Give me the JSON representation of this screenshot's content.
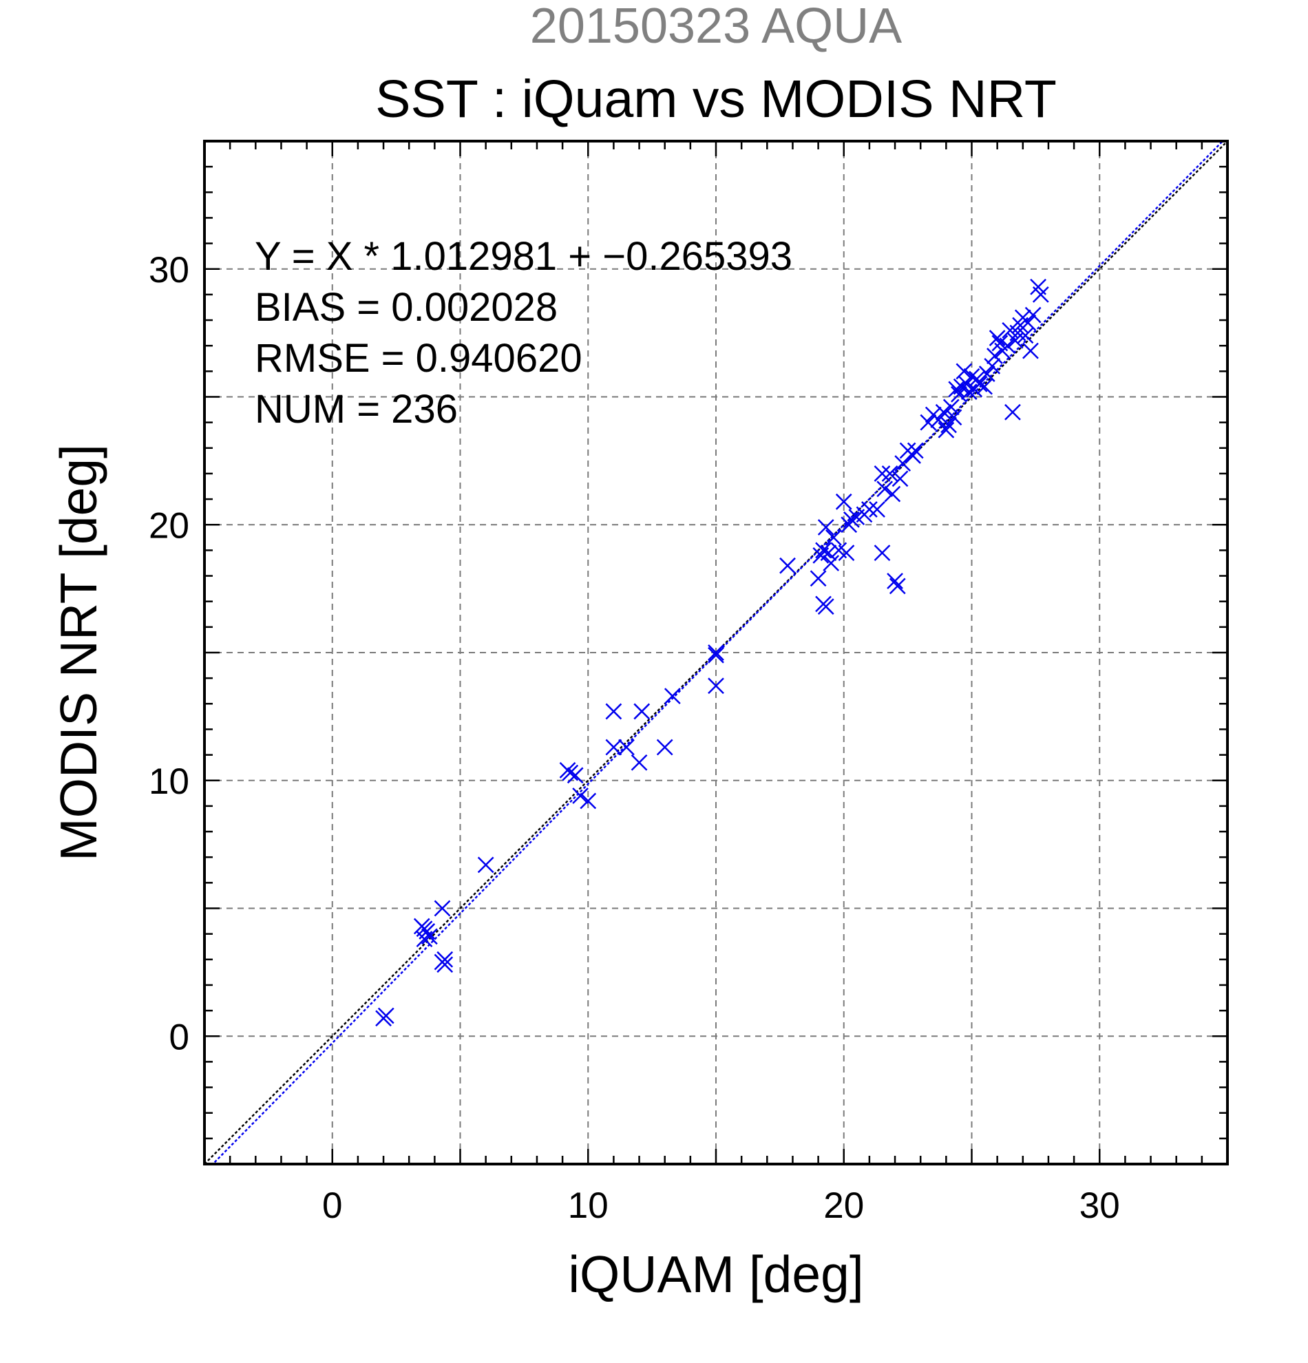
{
  "figure": {
    "suptitle": "20150323 AQUA",
    "title": "SST : iQuam vs MODIS NRT",
    "stats": [
      "Y = X * 1.012981 + −0.265393",
      "BIAS = 0.002028",
      "RMSE = 0.940620",
      "NUM = 236"
    ]
  },
  "chart_data": {
    "type": "scatter",
    "xlabel": "iQUAM [deg]",
    "ylabel": "MODIS NRT [deg]",
    "xlim": [
      -5,
      35
    ],
    "ylim": [
      -5,
      35
    ],
    "xticks": [
      0,
      10,
      20,
      30
    ],
    "yticks": [
      0,
      10,
      20,
      30
    ],
    "grid": true,
    "colors": {
      "points": "#0000ee",
      "regression": "#0000ee",
      "identity": "#000000"
    },
    "regression": {
      "slope": 1.012981,
      "intercept": -0.265393
    },
    "points": [
      [
        2.0,
        0.7
      ],
      [
        2.1,
        0.8
      ],
      [
        3.5,
        4.3
      ],
      [
        3.6,
        4.2
      ],
      [
        3.7,
        4.1
      ],
      [
        3.8,
        3.9
      ],
      [
        3.6,
        3.8
      ],
      [
        4.3,
        5.0
      ],
      [
        4.3,
        2.9
      ],
      [
        4.4,
        2.8
      ],
      [
        4.4,
        3.0
      ],
      [
        6.0,
        6.7
      ],
      [
        9.2,
        10.4
      ],
      [
        9.3,
        10.3
      ],
      [
        9.5,
        10.2
      ],
      [
        9.7,
        9.4
      ],
      [
        10.0,
        9.2
      ],
      [
        11.0,
        12.7
      ],
      [
        11.0,
        11.3
      ],
      [
        11.5,
        11.3
      ],
      [
        12.0,
        10.7
      ],
      [
        12.1,
        12.7
      ],
      [
        13.0,
        11.3
      ],
      [
        13.3,
        13.3
      ],
      [
        15.0,
        15.0
      ],
      [
        15.0,
        14.9
      ],
      [
        15.0,
        13.7
      ],
      [
        17.8,
        18.4
      ],
      [
        19.0,
        17.9
      ],
      [
        19.1,
        18.8
      ],
      [
        19.2,
        19.0
      ],
      [
        19.2,
        16.9
      ],
      [
        19.3,
        16.8
      ],
      [
        19.3,
        19.9
      ],
      [
        19.4,
        18.9
      ],
      [
        19.5,
        18.5
      ],
      [
        19.6,
        19.5
      ],
      [
        19.8,
        19.0
      ],
      [
        20.0,
        20.9
      ],
      [
        20.1,
        18.9
      ],
      [
        20.2,
        20.0
      ],
      [
        20.3,
        20.2
      ],
      [
        20.5,
        20.3
      ],
      [
        20.8,
        20.4
      ],
      [
        21.0,
        20.6
      ],
      [
        21.3,
        20.6
      ],
      [
        21.5,
        18.9
      ],
      [
        21.5,
        22.0
      ],
      [
        21.6,
        21.4
      ],
      [
        21.8,
        22.0
      ],
      [
        21.9,
        21.2
      ],
      [
        22.0,
        17.8
      ],
      [
        22.1,
        17.6
      ],
      [
        22.2,
        21.8
      ],
      [
        22.3,
        22.4
      ],
      [
        22.5,
        22.9
      ],
      [
        22.7,
        22.7
      ],
      [
        22.8,
        22.9
      ],
      [
        23.3,
        24.0
      ],
      [
        23.5,
        24.3
      ],
      [
        23.7,
        24.1
      ],
      [
        23.9,
        24.4
      ],
      [
        24.0,
        23.7
      ],
      [
        24.1,
        23.9
      ],
      [
        24.2,
        24.6
      ],
      [
        24.3,
        24.2
      ],
      [
        24.4,
        25.3
      ],
      [
        24.5,
        25.1
      ],
      [
        24.6,
        25.4
      ],
      [
        24.7,
        26.0
      ],
      [
        24.8,
        25.5
      ],
      [
        24.9,
        25.2
      ],
      [
        25.0,
        25.8
      ],
      [
        25.1,
        25.3
      ],
      [
        25.2,
        25.7
      ],
      [
        25.3,
        25.5
      ],
      [
        25.5,
        25.4
      ],
      [
        25.6,
        25.9
      ],
      [
        25.8,
        26.2
      ],
      [
        25.9,
        26.6
      ],
      [
        26.0,
        27.3
      ],
      [
        26.1,
        27.1
      ],
      [
        26.2,
        26.8
      ],
      [
        26.4,
        27.0
      ],
      [
        26.5,
        27.6
      ],
      [
        26.6,
        24.4
      ],
      [
        26.7,
        27.2
      ],
      [
        26.8,
        27.5
      ],
      [
        26.9,
        27.8
      ],
      [
        27.0,
        28.1
      ],
      [
        27.1,
        27.4
      ],
      [
        27.2,
        27.9
      ],
      [
        27.3,
        26.8
      ],
      [
        27.4,
        28.2
      ],
      [
        27.6,
        29.3
      ],
      [
        27.7,
        29.0
      ]
    ]
  }
}
